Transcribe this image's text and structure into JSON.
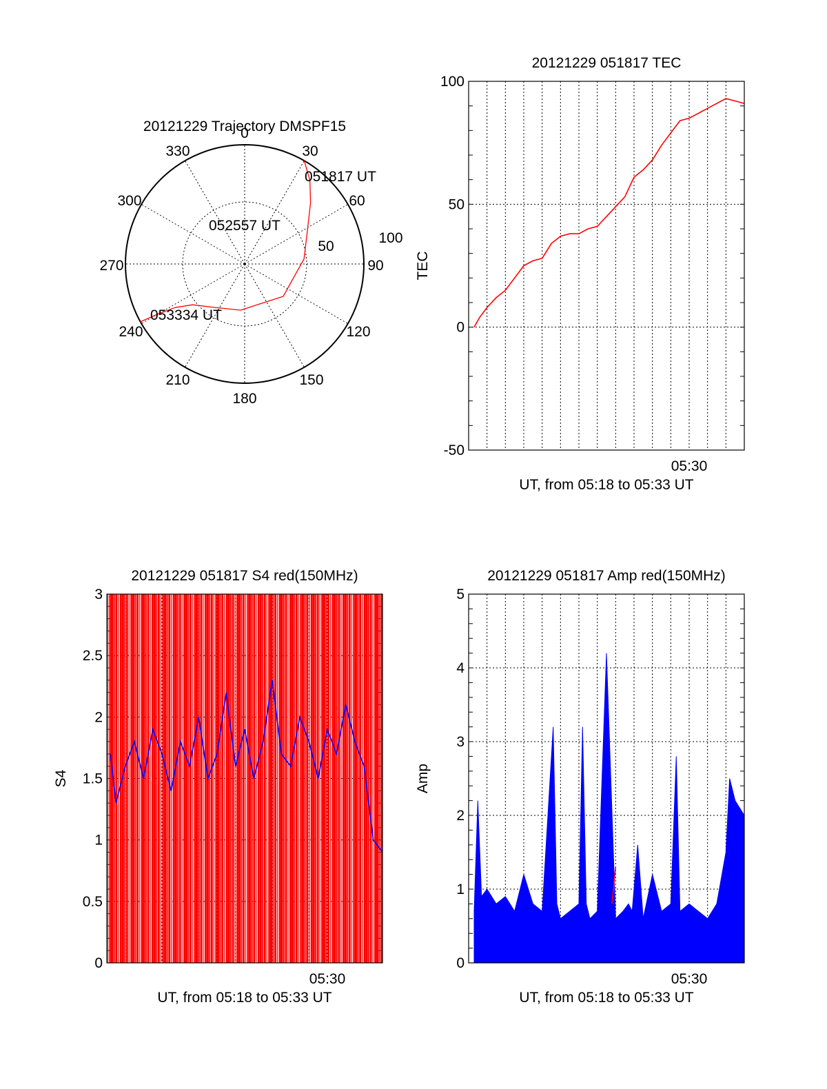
{
  "chart_data": [
    {
      "id": "trajectory",
      "type": "polar",
      "title": "20121229 Trajectory DMSPF15",
      "angle_labels": [
        "0",
        "30",
        "60",
        "90",
        "120",
        "150",
        "180",
        "210",
        "240",
        "270",
        "300",
        "330"
      ],
      "radius_labels": [
        "50",
        "100"
      ],
      "rmax": 100,
      "series": [
        {
          "color": "#ff0000",
          "points_az_el": [
            [
              30,
              0
            ],
            [
              38,
              10
            ],
            [
              47,
              22
            ],
            [
              60,
              35
            ],
            [
              85,
              45
            ],
            [
              130,
              52
            ],
            [
              185,
              55
            ],
            [
              215,
              50
            ],
            [
              232,
              40
            ],
            [
              238,
              28
            ],
            [
              240,
              14
            ],
            [
              241,
              0
            ]
          ]
        }
      ],
      "annotations": [
        {
          "text": "051817 UT",
          "az": 31,
          "el": 5
        },
        {
          "text": "052557 UT",
          "az": 10,
          "el": 42
        },
        {
          "text": "053334 UT",
          "az": 226,
          "el": 5
        }
      ]
    },
    {
      "id": "tec",
      "type": "line",
      "title": "20121229 051817 TEC",
      "xlabel": "UT, from 05:18 to 05:33 UT",
      "ylabel": "TEC",
      "ylim": [
        -50,
        100
      ],
      "yticks": [
        "100",
        "50",
        "0",
        "-50"
      ],
      "xlim_minutes": [
        18.0,
        33.0
      ],
      "xtick_labels": [
        {
          "minute": 30,
          "label": "05:30"
        }
      ],
      "series": [
        {
          "color": "#ff0000",
          "x": [
            18.3,
            18.6,
            19.0,
            19.5,
            20.0,
            20.5,
            21.0,
            21.5,
            22.0,
            22.5,
            23.0,
            23.5,
            24.0,
            24.5,
            25.0,
            25.5,
            26.0,
            26.5,
            27.0,
            27.5,
            28.0,
            28.5,
            29.0,
            29.5,
            30.0,
            30.5,
            31.0,
            31.5,
            32.0,
            32.5,
            33.0
          ],
          "y": [
            0,
            4,
            8,
            12,
            15,
            20,
            25,
            27,
            28,
            34,
            37,
            38,
            38,
            40,
            41,
            45,
            49,
            53,
            61,
            64,
            68,
            74,
            79,
            84,
            85,
            87,
            89,
            91,
            93,
            92,
            91
          ]
        }
      ]
    },
    {
      "id": "s4",
      "type": "line",
      "title": "20121229 051817 S4 red(150MHz)",
      "xlabel": "UT, from 05:18 to 05:33 UT",
      "ylabel": "S4",
      "ylim": [
        0,
        3
      ],
      "yticks": [
        "3",
        "2.5",
        "2",
        "1.5",
        "1",
        "0.5",
        "0"
      ],
      "xlim_minutes": [
        18.0,
        33.0
      ],
      "xtick_labels": [
        {
          "minute": 30,
          "label": "05:30"
        }
      ],
      "series": [
        {
          "color": "#ff0000",
          "x": [
            18.0,
            33.0
          ],
          "y": [
            3,
            3
          ]
        },
        {
          "color": "#0000ff",
          "x": [
            18.2,
            18.5,
            19.0,
            19.5,
            20.0,
            20.5,
            21.0,
            21.5,
            22.0,
            22.5,
            23.0,
            23.5,
            24.0,
            24.5,
            25.0,
            25.5,
            26.0,
            26.5,
            27.0,
            27.5,
            28.0,
            28.5,
            29.0,
            29.5,
            30.0,
            30.5,
            31.0,
            31.5,
            32.0,
            32.5,
            33.0
          ],
          "y": [
            1.7,
            1.3,
            1.6,
            1.8,
            1.5,
            1.9,
            1.7,
            1.4,
            1.8,
            1.6,
            2.0,
            1.5,
            1.7,
            2.2,
            1.6,
            1.9,
            1.5,
            1.8,
            2.3,
            1.7,
            1.6,
            2.0,
            1.8,
            1.5,
            1.9,
            1.7,
            2.1,
            1.8,
            1.6,
            1.0,
            0.9
          ]
        }
      ]
    },
    {
      "id": "amp",
      "type": "line",
      "title": "20121229 051817 Amp red(150MHz)",
      "xlabel": "UT, from 05:18 to 05:33 UT",
      "ylabel": "Amp",
      "ylim": [
        0,
        5
      ],
      "yticks": [
        "5",
        "4",
        "3",
        "2",
        "1",
        "0"
      ],
      "xlim_minutes": [
        18.0,
        33.0
      ],
      "xtick_labels": [
        {
          "minute": 30,
          "label": "05:30"
        }
      ],
      "series": [
        {
          "color": "#0000ff",
          "x": [
            18.3,
            18.5,
            18.7,
            19.0,
            19.5,
            20.0,
            20.5,
            21.0,
            21.5,
            22.0,
            22.6,
            22.8,
            23.0,
            23.5,
            24.0,
            24.2,
            24.4,
            24.6,
            25.0,
            25.5,
            26.0,
            26.4,
            26.7,
            26.9,
            27.2,
            27.5,
            28.0,
            28.5,
            29.0,
            29.3,
            29.5,
            30.0,
            30.5,
            31.0,
            31.5,
            32.0,
            32.2,
            32.5,
            33.0
          ],
          "y": [
            0.7,
            2.2,
            0.9,
            1.0,
            0.8,
            0.9,
            0.7,
            1.2,
            0.8,
            0.7,
            3.2,
            0.8,
            0.6,
            0.7,
            0.8,
            3.2,
            0.8,
            0.6,
            0.7,
            4.2,
            0.6,
            0.7,
            0.8,
            0.7,
            1.6,
            0.6,
            1.2,
            0.7,
            0.8,
            2.8,
            0.7,
            0.8,
            0.7,
            0.6,
            0.8,
            1.5,
            2.5,
            2.2,
            2.0
          ]
        },
        {
          "color": "#ff0000",
          "x": [
            25.8,
            26.0
          ],
          "y": [
            0.8,
            1.3
          ]
        }
      ]
    }
  ]
}
